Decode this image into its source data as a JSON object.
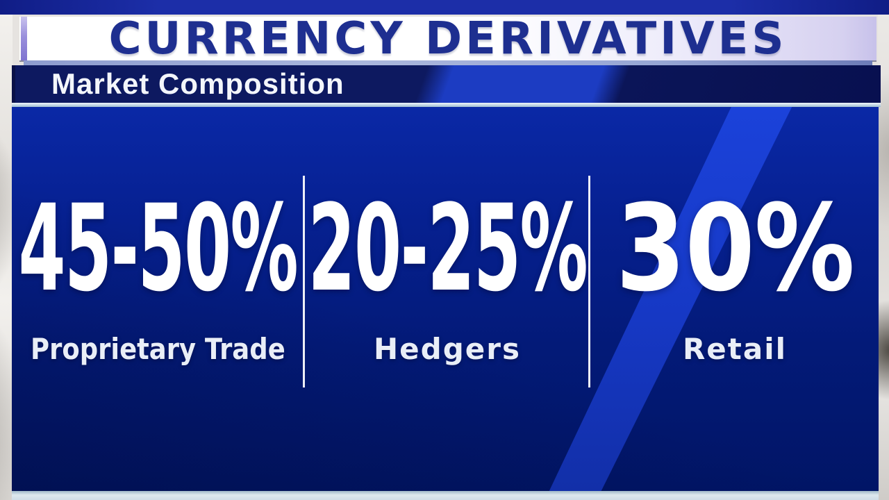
{
  "header": {
    "title": "CURRENCY DERIVATIVES",
    "subtitle": "Market Composition"
  },
  "panel": {
    "segments": [
      {
        "value": "45-50%",
        "label": "Proprietary Trade"
      },
      {
        "value": "20-25%",
        "label": "Hedgers"
      },
      {
        "value": "30%",
        "label": "Retail"
      }
    ]
  },
  "chart_data": {
    "type": "table",
    "title": "CURRENCY DERIVATIVES",
    "subtitle": "Market Composition",
    "categories": [
      "Proprietary Trade",
      "Hedgers",
      "Retail"
    ],
    "values_text": [
      "45-50%",
      "20-25%",
      "30%"
    ],
    "values_pct_low": [
      45,
      20,
      30
    ],
    "values_pct_high": [
      50,
      25,
      30
    ],
    "unit": "%",
    "legend_position": "none",
    "notes": "Broadcast infographic: three share ranges separated by vertical divider lines on a royal-blue panel"
  },
  "colors": {
    "royal_blue_sheen": "#1b42da",
    "panel_navy": "#01156a",
    "panel_top_blue": "#0a28a6",
    "title_text_navy": "#1e2f90",
    "banner_white": "#ffffff",
    "banner_lavender": "#c7c1ea",
    "accent_purple": "#7f73d0",
    "subtitle_bar_navy": "#0d1960",
    "divider_light_blue": "#c4d8e6",
    "text_white": "#ffffff"
  }
}
